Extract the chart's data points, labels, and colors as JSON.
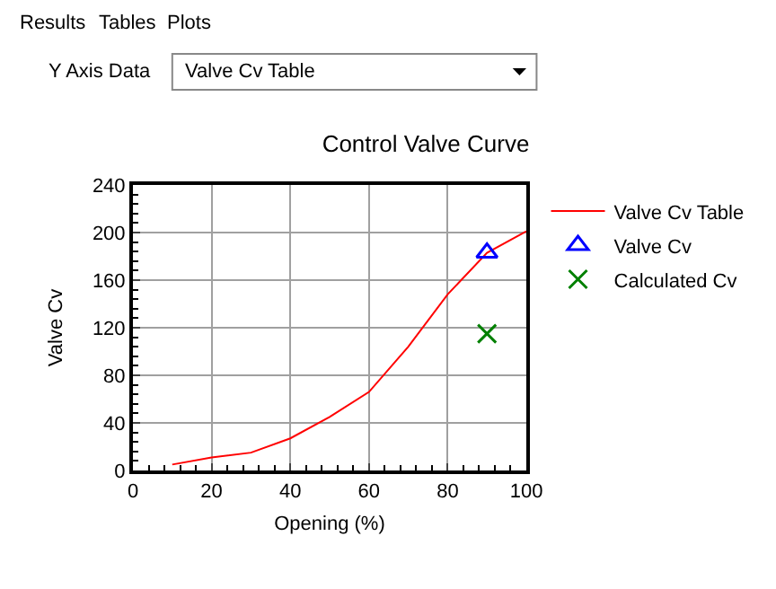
{
  "chart_data": {
    "type": "line",
    "title": "Control Valve Curve",
    "xlabel": "Opening (%)",
    "ylabel": "Valve Cv",
    "annotations": [
      "Results",
      "Tables",
      "Plots",
      "Y Axis Data",
      "Valve Cv Table"
    ],
    "series": [
      {
        "name": "Valve Cv Table",
        "color": "#ff0000",
        "marker": "none",
        "x": [
          10,
          20,
          30,
          40,
          50,
          60,
          70,
          80,
          90,
          100
        ],
        "values": [
          5,
          11,
          15,
          27,
          45,
          66,
          104,
          148,
          183,
          201
        ]
      },
      {
        "name": "Valve Cv",
        "color": "#0000ff",
        "type": "scatter",
        "marker": "triangle",
        "x": [
          90
        ],
        "values": [
          183
        ]
      },
      {
        "name": "Calculated Cv",
        "color": "#008000",
        "type": "scatter",
        "marker": "cross",
        "x": [
          90
        ],
        "values": [
          115
        ]
      }
    ],
    "xlim": [
      0,
      100
    ],
    "xticks": [
      0,
      20,
      40,
      60,
      80,
      100
    ],
    "ylim": [
      0,
      240
    ],
    "yticks": [
      0,
      40,
      80,
      120,
      160,
      200,
      240
    ],
    "grid": true,
    "legend": "right"
  }
}
